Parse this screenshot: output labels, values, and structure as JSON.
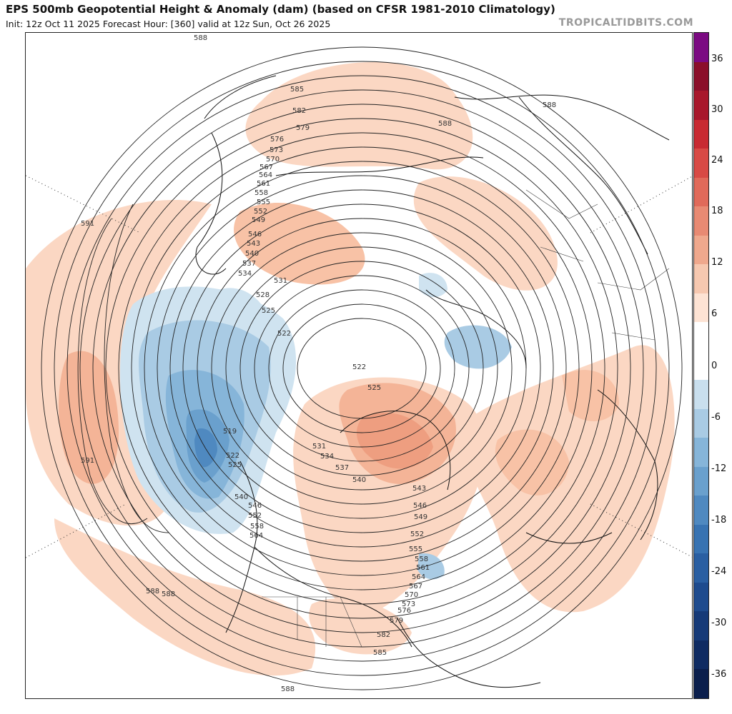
{
  "header": {
    "title": "EPS 500mb Geopotential Height & Anomaly (dam) (based on CFSR 1981-2010 Climatology)",
    "subtitle": "Init: 12z Oct 11 2025   Forecast Hour: [360]   valid at 12z Sun, Oct 26 2025",
    "credit": "TROPICALTIDBITS.COM"
  },
  "colorbar": {
    "ticks": [
      "36",
      "30",
      "24",
      "18",
      "12",
      "6",
      "0",
      "-6",
      "-12",
      "-18",
      "-24",
      "-30",
      "-36"
    ],
    "colors": [
      "#7b0a82",
      "#8b0f2a",
      "#a8172b",
      "#c82a32",
      "#d84a45",
      "#e06a5a",
      "#e88a73",
      "#efa88d",
      "#f6c8b0",
      "#fde3d4",
      "#ffffff",
      "#ffffff",
      "#c9dfee",
      "#a9cbe4",
      "#86b5d9",
      "#6aa0cd",
      "#4f89c0",
      "#3873b2",
      "#2a5fa2",
      "#1e4b8e",
      "#163a78",
      "#0f2b62",
      "#0a1e4c"
    ]
  },
  "contour_labels": [
    "588",
    "585",
    "582",
    "579",
    "576",
    "573",
    "570",
    "567",
    "564",
    "561",
    "558",
    "555",
    "552",
    "549",
    "546",
    "543",
    "540",
    "537",
    "534",
    "531",
    "528",
    "525",
    "522",
    "519",
    "591"
  ],
  "map_labels": [
    {
      "text": "588"
    },
    {
      "text": "585"
    },
    {
      "text": "582"
    },
    {
      "text": "579"
    },
    {
      "text": "576"
    },
    {
      "text": "573"
    },
    {
      "text": "570"
    },
    {
      "text": "567"
    },
    {
      "text": "564"
    },
    {
      "text": "561"
    },
    {
      "text": "558"
    },
    {
      "text": "555"
    },
    {
      "text": "552"
    },
    {
      "text": "549"
    },
    {
      "text": "546"
    },
    {
      "text": "543"
    },
    {
      "text": "540"
    },
    {
      "text": "537"
    },
    {
      "text": "534"
    },
    {
      "text": "531"
    },
    {
      "text": "528"
    },
    {
      "text": "525"
    },
    {
      "text": "522"
    },
    {
      "text": "591"
    },
    {
      "text": "591"
    },
    {
      "text": "588"
    },
    {
      "text": "522"
    },
    {
      "text": "525"
    },
    {
      "text": "519"
    },
    {
      "text": "522"
    },
    {
      "text": "525"
    },
    {
      "text": "540"
    },
    {
      "text": "546"
    },
    {
      "text": "552"
    },
    {
      "text": "558"
    },
    {
      "text": "564"
    },
    {
      "text": "588"
    },
    {
      "text": "588"
    },
    {
      "text": "588"
    },
    {
      "text": "531"
    },
    {
      "text": "534"
    },
    {
      "text": "537"
    },
    {
      "text": "540"
    },
    {
      "text": "543"
    },
    {
      "text": "546"
    },
    {
      "text": "549"
    },
    {
      "text": "552"
    },
    {
      "text": "555"
    },
    {
      "text": "558"
    },
    {
      "text": "561"
    },
    {
      "text": "564"
    },
    {
      "text": "567"
    },
    {
      "text": "570"
    },
    {
      "text": "573"
    },
    {
      "text": "576"
    },
    {
      "text": "579"
    },
    {
      "text": "582"
    },
    {
      "text": "585"
    },
    {
      "text": "588"
    }
  ]
}
